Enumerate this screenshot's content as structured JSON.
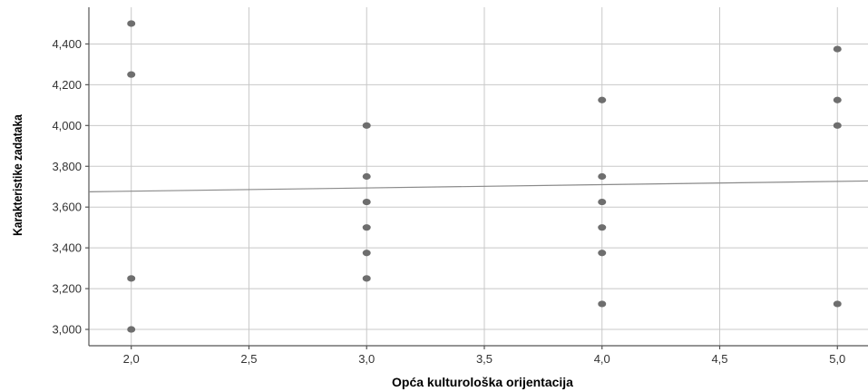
{
  "chart_data": {
    "type": "scatter",
    "xlabel": "Opća kulturološka orijentacija",
    "ylabel": "Karakteristike zadataka",
    "xlim": [
      1.82,
      5.13
    ],
    "ylim": [
      2.92,
      4.58
    ],
    "x_ticks": [
      2.0,
      2.5,
      3.0,
      3.5,
      4.0,
      4.5,
      5.0
    ],
    "x_tick_labels": [
      "2,0",
      "2,5",
      "3,0",
      "3,5",
      "4,0",
      "4,5",
      "5,0"
    ],
    "y_ticks": [
      3.0,
      3.2,
      3.4,
      3.6,
      3.8,
      4.0,
      4.2,
      4.4
    ],
    "y_tick_labels": [
      "3,000",
      "3,200",
      "3,400",
      "3,600",
      "3,800",
      "4,000",
      "4,200",
      "4,400"
    ],
    "grid": true,
    "points": [
      {
        "x": 2.0,
        "y": 4.5
      },
      {
        "x": 2.0,
        "y": 4.25
      },
      {
        "x": 2.0,
        "y": 3.25
      },
      {
        "x": 2.0,
        "y": 3.0
      },
      {
        "x": 3.0,
        "y": 4.0
      },
      {
        "x": 3.0,
        "y": 3.75
      },
      {
        "x": 3.0,
        "y": 3.625
      },
      {
        "x": 3.0,
        "y": 3.5
      },
      {
        "x": 3.0,
        "y": 3.375
      },
      {
        "x": 3.0,
        "y": 3.25
      },
      {
        "x": 4.0,
        "y": 4.125
      },
      {
        "x": 4.0,
        "y": 3.75
      },
      {
        "x": 4.0,
        "y": 3.625
      },
      {
        "x": 4.0,
        "y": 3.5
      },
      {
        "x": 4.0,
        "y": 3.375
      },
      {
        "x": 4.0,
        "y": 3.125
      },
      {
        "x": 5.0,
        "y": 4.375
      },
      {
        "x": 5.0,
        "y": 4.125
      },
      {
        "x": 5.0,
        "y": 4.0
      },
      {
        "x": 5.0,
        "y": 3.125
      }
    ],
    "fit_line": {
      "x1": 1.82,
      "y1": 3.675,
      "x2": 5.13,
      "y2": 3.728
    },
    "colors": {
      "points": "#6e6e6e",
      "fit_line": "#8a8a8a",
      "grid": "#c8c8c8",
      "axis": "#555555"
    }
  }
}
